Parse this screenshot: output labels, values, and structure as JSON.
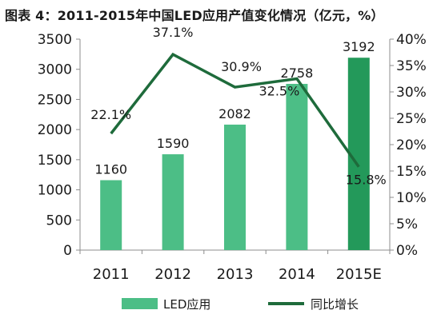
{
  "title": "图表 4：2011-2015年中国LED应用产值变化情况（亿元，%）",
  "chart_data": {
    "type": "bar",
    "title": "图表 4：2011-2015年中国LED应用产值变化情况（亿元，%）",
    "categories": [
      "2011",
      "2012",
      "2013",
      "2014",
      "2015E"
    ],
    "series": [
      {
        "name": "LED应用",
        "type": "bar",
        "axis": "left",
        "values": [
          1160,
          1590,
          2082,
          2758,
          3192
        ],
        "value_labels": [
          "1160",
          "1590",
          "2082",
          "2758",
          "3192"
        ]
      },
      {
        "name": "同比增长",
        "type": "line",
        "axis": "right",
        "values": [
          22.1,
          37.1,
          30.9,
          32.5,
          15.8
        ],
        "value_labels": [
          "22.1%",
          "37.1%",
          "30.9%",
          "32.5%",
          "15.8%"
        ]
      }
    ],
    "y_left": {
      "min": 0,
      "max": 3500,
      "step": 500,
      "ticks": [
        "0",
        "500",
        "1000",
        "1500",
        "2000",
        "2500",
        "3000",
        "3500"
      ]
    },
    "y_right": {
      "min": 0,
      "max": 40,
      "step": 5,
      "ticks": [
        "0%",
        "5%",
        "10%",
        "15%",
        "20%",
        "25%",
        "30%",
        "35%",
        "40%"
      ]
    },
    "grid": false,
    "legend_position": "bottom",
    "colors": {
      "bar": "#4cbe86",
      "bar_forecast": "#23995a",
      "line": "#1e6b3b"
    }
  }
}
